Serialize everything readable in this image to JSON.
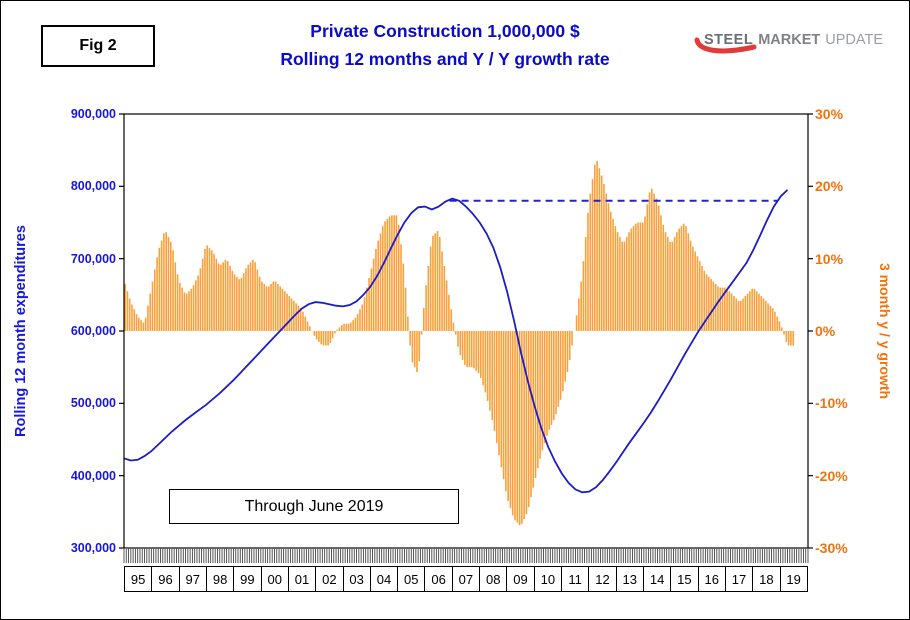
{
  "header": {
    "fig_label": "Fig 2",
    "title_line1": "Private Construction 1,000,000 $",
    "title_line2": "Rolling 12 months and Y / Y growth rate",
    "logo": {
      "word1": "STEEL",
      "word2": "MARKET",
      "word3": "UPDATE",
      "swoosh_color": "#e03a3a"
    }
  },
  "chart": {
    "annotation": "Through June 2019",
    "left_axis": {
      "title": "Rolling 12 month expenditures",
      "ticks": [
        "900,000",
        "800,000",
        "700,000",
        "600,000",
        "500,000",
        "400,000",
        "300,000"
      ]
    },
    "right_axis": {
      "title": "3 month y / y growth",
      "ticks": [
        "30%",
        "20%",
        "10%",
        "0%",
        "-10%",
        "-20%",
        "-30%"
      ]
    },
    "x_axis": {
      "years": [
        "95",
        "96",
        "97",
        "98",
        "99",
        "00",
        "01",
        "02",
        "03",
        "04",
        "05",
        "06",
        "07",
        "08",
        "09",
        "10",
        "11",
        "12",
        "13",
        "14",
        "15",
        "16",
        "17",
        "18",
        "19"
      ]
    }
  },
  "chart_data": {
    "type": "combo",
    "resolution": "quarterly estimates, Jan 1995 through Jun 2019",
    "x_range": [
      1995,
      2020
    ],
    "left_range": [
      300000,
      900000
    ],
    "right_range": [
      -30,
      30
    ],
    "series": [
      {
        "name": "Rolling 12 month expenditures (1,000,000 $)",
        "type": "line",
        "axis": "left",
        "color": "#1c1cc8",
        "x_start": 1995.0,
        "x_step": 0.25,
        "values": [
          424000,
          421000,
          422000,
          427000,
          434000,
          443000,
          452000,
          461000,
          469000,
          477000,
          484000,
          491000,
          498000,
          506000,
          514000,
          523000,
          532000,
          542000,
          552000,
          562000,
          572000,
          582000,
          592000,
          602000,
          612000,
          622000,
          631000,
          637000,
          640000,
          639000,
          637000,
          635000,
          634000,
          636000,
          641000,
          650000,
          661000,
          676000,
          694000,
          714000,
          733000,
          750000,
          763000,
          771000,
          772000,
          768000,
          772000,
          779000,
          783000,
          780000,
          772000,
          762000,
          750000,
          735000,
          715000,
          688000,
          655000,
          615000,
          572000,
          532000,
          497000,
          466000,
          440000,
          420000,
          403000,
          390000,
          381000,
          377000,
          378000,
          384000,
          394000,
          406000,
          419000,
          433000,
          447000,
          460000,
          473000,
          487000,
          502000,
          518000,
          534000,
          551000,
          568000,
          584000,
          600000,
          614000,
          628000,
          642000,
          655000,
          668000,
          681000,
          694000,
          712000,
          732000,
          753000,
          772000,
          786000,
          795000
        ]
      },
      {
        "name": "3 month y / y growth (%)",
        "type": "bar",
        "axis": "right",
        "color": "#f9a03a",
        "x_start": 1995.0,
        "x_step": 0.25,
        "values": [
          7,
          4,
          2,
          1,
          6,
          11,
          14,
          12,
          7,
          5,
          6,
          8,
          12,
          11,
          9,
          10,
          8,
          7,
          9,
          10,
          7,
          6,
          7,
          6,
          5,
          4,
          3,
          1,
          -1,
          -2,
          -2,
          0,
          1,
          1,
          2,
          4,
          8,
          12,
          15,
          16,
          16,
          8,
          -4,
          -6,
          5,
          13,
          14,
          8,
          2,
          -3,
          -5,
          -5,
          -6,
          -9,
          -13,
          -18,
          -23,
          -26,
          -27,
          -25,
          -21,
          -17,
          -14,
          -12,
          -9,
          -5,
          1,
          8,
          18,
          24,
          21,
          17,
          14,
          12,
          14,
          15,
          15,
          20,
          18,
          14,
          12,
          14,
          15,
          12,
          10,
          8,
          7,
          6,
          6,
          5,
          4,
          5,
          6,
          5,
          4,
          3,
          1,
          -2
        ]
      }
    ],
    "reference_line": {
      "description": "dashed prior-peak reference",
      "axis": "left",
      "value": 780000,
      "x_start": 2006.9,
      "x_end": 2018.9,
      "style": "dashed",
      "color": "#2323c8"
    }
  }
}
